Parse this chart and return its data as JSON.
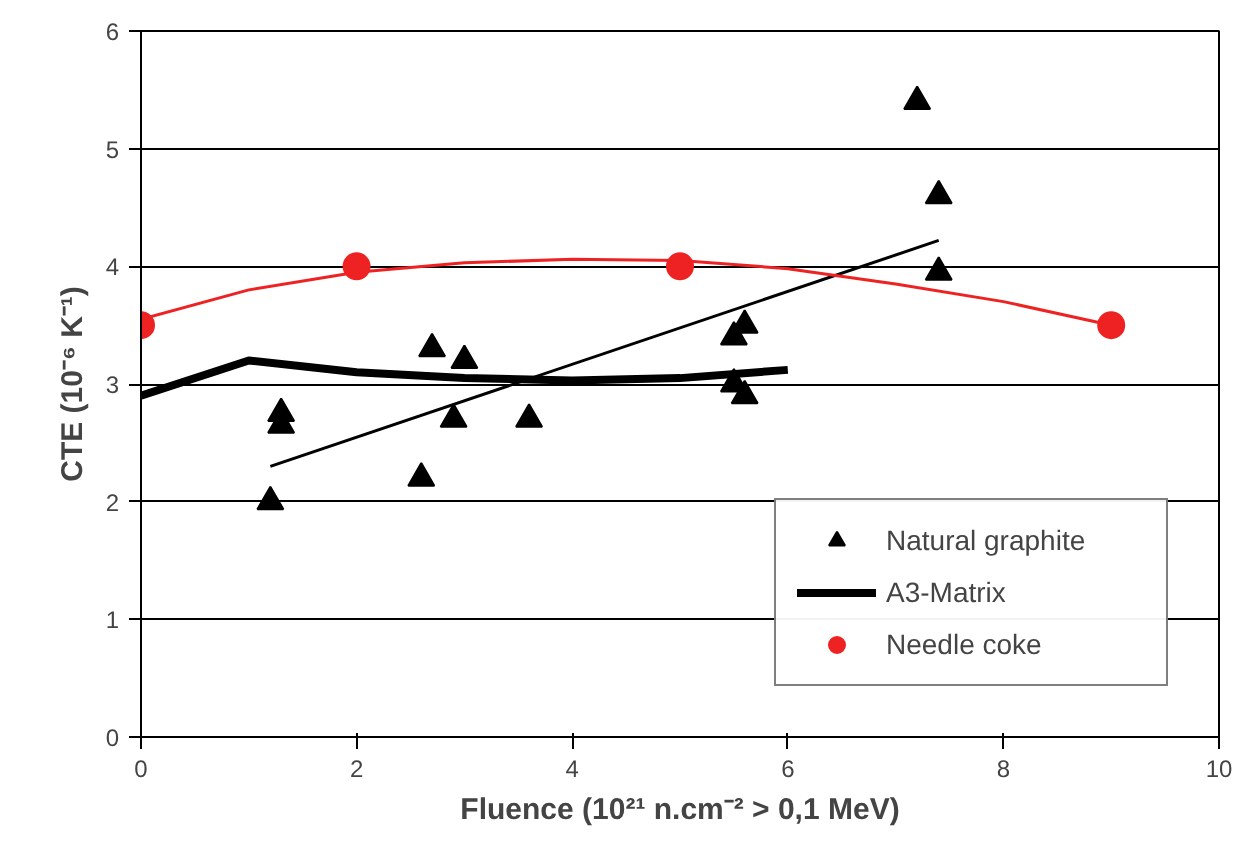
{
  "chart_data": {
    "type": "scatter",
    "xlabel": "Fluence (10²¹ n.cm⁻² > 0,1 MeV)",
    "ylabel": "CTE (10⁻⁶ K⁻¹)",
    "xlim": [
      0,
      10
    ],
    "ylim": [
      0,
      6
    ],
    "xticks": [
      0,
      2,
      4,
      6,
      8,
      10
    ],
    "yticks": [
      0,
      1,
      2,
      3,
      4,
      5,
      6
    ],
    "grid": "y",
    "legend": "bottom right",
    "series": [
      {
        "name": "Natural graphite",
        "marker": "triangle",
        "color": "#000000",
        "x": [
          1.2,
          1.3,
          1.3,
          2.6,
          2.7,
          2.9,
          3.0,
          3.6,
          5.5,
          5.5,
          5.6,
          5.6,
          7.2,
          7.4,
          7.4
        ],
        "values": [
          2.0,
          2.75,
          2.65,
          2.2,
          3.3,
          2.7,
          3.2,
          2.7,
          3.4,
          3.0,
          3.5,
          2.9,
          5.4,
          4.6,
          3.95
        ]
      },
      {
        "name": "A3-Matrix",
        "type": "line",
        "marker": "none",
        "color": "#000000",
        "x": [
          0,
          1,
          2,
          3,
          4,
          5,
          6
        ],
        "values": [
          2.9,
          3.2,
          3.1,
          3.05,
          3.03,
          3.05,
          3.12
        ]
      },
      {
        "name": "Needle coke",
        "marker": "circle",
        "color": "#ee2222",
        "x": [
          0,
          2,
          5,
          9
        ],
        "values": [
          3.5,
          4.0,
          4.0,
          3.5
        ]
      },
      {
        "type": "line",
        "marker": "none",
        "color": "#000000",
        "x": [
          1.2,
          7.4
        ],
        "values": [
          2.3,
          4.22
        ]
      },
      {
        "type": "line",
        "marker": "none",
        "color": "#ee2222",
        "x": [
          0,
          1,
          2,
          3,
          4,
          5,
          6,
          7,
          8,
          9
        ],
        "values": [
          3.55,
          3.8,
          3.95,
          4.03,
          4.06,
          4.05,
          3.98,
          3.85,
          3.7,
          3.5
        ]
      }
    ]
  }
}
